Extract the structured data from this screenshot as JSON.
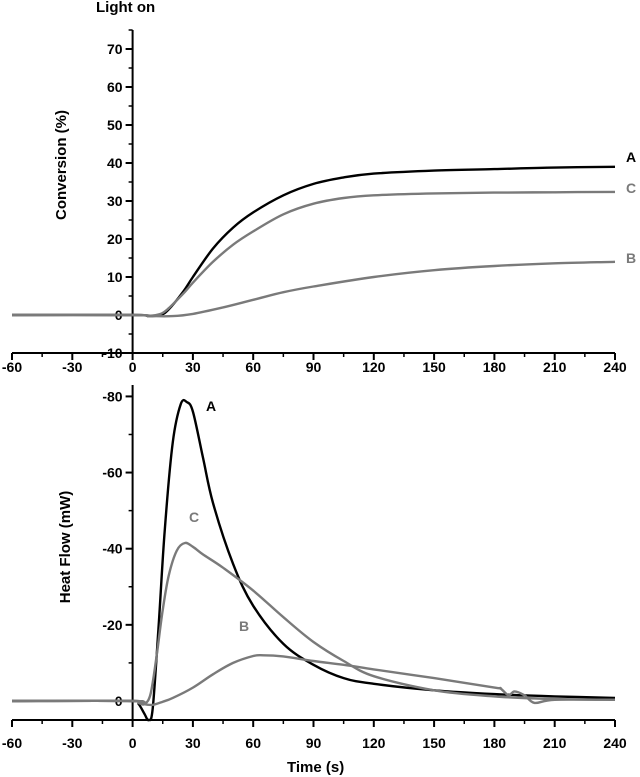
{
  "colors": {
    "A": "#000000",
    "B": "#7a7a7a",
    "C": "#7a7a7a"
  },
  "chart_data": [
    {
      "type": "line",
      "annotation": "Light on",
      "ylabel": "Conversion (%)",
      "xlabel": "",
      "xlim": [
        -60,
        240
      ],
      "ylim": [
        -10,
        75
      ],
      "xticks": [
        "-60",
        "-30",
        "0",
        "30",
        "60",
        "90",
        "120",
        "150",
        "180",
        "210",
        "240"
      ],
      "yticks": [
        "-10",
        "0",
        "10",
        "20",
        "30",
        "40",
        "50",
        "60",
        "70"
      ],
      "series": [
        {
          "name": "A",
          "x": [
            -60,
            0,
            8,
            14,
            18,
            25,
            30,
            40,
            50,
            60,
            75,
            90,
            105,
            120,
            150,
            180,
            210,
            240
          ],
          "y": [
            0,
            0,
            -0.3,
            0,
            1.5,
            6,
            10,
            17.5,
            23,
            27,
            31.5,
            34.5,
            36.2,
            37.2,
            38,
            38.4,
            38.8,
            39
          ]
        },
        {
          "name": "C",
          "x": [
            -60,
            0,
            8,
            14,
            18,
            25,
            30,
            40,
            50,
            60,
            75,
            90,
            105,
            120,
            150,
            180,
            210,
            240
          ],
          "y": [
            0,
            0,
            -0.2,
            0.3,
            1.8,
            5.5,
            8.5,
            14,
            18.5,
            22,
            26.5,
            29.3,
            30.8,
            31.5,
            32,
            32.2,
            32.3,
            32.4
          ]
        },
        {
          "name": "B",
          "x": [
            -60,
            0,
            10,
            20,
            30,
            45,
            60,
            75,
            90,
            120,
            150,
            180,
            210,
            240
          ],
          "y": [
            0,
            0,
            -0.3,
            -0.3,
            0.3,
            2,
            4,
            6,
            7.5,
            10,
            11.8,
            12.9,
            13.6,
            14
          ]
        }
      ]
    },
    {
      "type": "line",
      "ylabel": "Heat Flow (mW)",
      "xlabel": "Time (s)",
      "xlim": [
        -60,
        240
      ],
      "ylim": [
        5,
        -83
      ],
      "xticks": [
        "-60",
        "-30",
        "0",
        "30",
        "60",
        "90",
        "120",
        "150",
        "180",
        "210",
        "240"
      ],
      "yticks": [
        "0",
        "-20",
        "-40",
        "-60",
        "-80"
      ],
      "series": [
        {
          "name": "A",
          "x": [
            -60,
            0,
            3,
            6,
            8,
            10,
            13,
            16,
            20,
            24,
            27,
            30,
            35,
            40,
            50,
            60,
            75,
            90,
            105,
            120,
            150,
            180,
            210,
            240
          ],
          "y": [
            0,
            0,
            0.8,
            3.5,
            5,
            2,
            -20,
            -45,
            -68,
            -78,
            -78.5,
            -76,
            -64,
            -52,
            -36,
            -25,
            -15,
            -9.5,
            -6,
            -4.5,
            -2.8,
            -1.8,
            -1.2,
            -0.8
          ]
        },
        {
          "name": "C",
          "x": [
            -60,
            0,
            3,
            6,
            9,
            12,
            15,
            18,
            22,
            26,
            30,
            35,
            45,
            60,
            75,
            90,
            105,
            120,
            150,
            180,
            210,
            240
          ],
          "y": [
            0,
            0,
            0.5,
            0.8,
            -2,
            -12,
            -24,
            -33,
            -39.5,
            -41.5,
            -40.5,
            -38.5,
            -35,
            -29,
            -22,
            -15.5,
            -10.5,
            -6.5,
            -2.8,
            -1.2,
            -0.5,
            -0.3
          ]
        },
        {
          "name": "B",
          "x": [
            -60,
            0,
            5,
            10,
            15,
            20,
            30,
            40,
            50,
            60,
            65,
            75,
            90,
            105,
            120,
            150,
            180,
            183,
            187,
            190,
            195,
            200,
            210,
            240
          ],
          "y": [
            0,
            0,
            0.8,
            1,
            0.2,
            -0.8,
            -3.5,
            -7,
            -10,
            -11.8,
            -12,
            -11.7,
            -10.5,
            -9.5,
            -8.3,
            -6,
            -3.5,
            -3.3,
            -1.5,
            -2.5,
            -1.5,
            0.5,
            -0.3,
            -0.3
          ]
        }
      ]
    }
  ]
}
